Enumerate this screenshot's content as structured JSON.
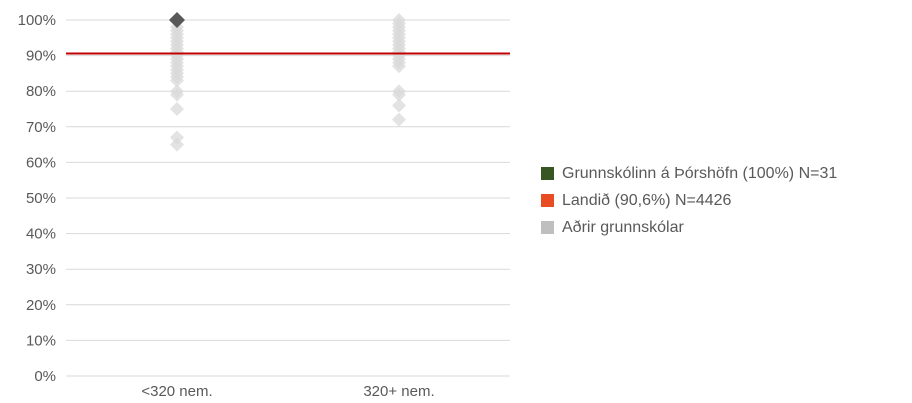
{
  "chart_data": {
    "type": "scatter",
    "categories": [
      "<320 nem.",
      "320+ nem."
    ],
    "ylim": [
      0,
      100
    ],
    "y_ticks": [
      "0%",
      "10%",
      "20%",
      "30%",
      "40%",
      "50%",
      "60%",
      "70%",
      "80%",
      "90%",
      "100%"
    ],
    "grid": true,
    "legend_position": "right",
    "series": [
      {
        "name": "Grunnskólinn á Þórshöfn (100%) N=31",
        "color": "#375623",
        "marker_color": "#595959",
        "points": [
          {
            "category": "<320 nem.",
            "y": 100
          }
        ]
      },
      {
        "name": "Landið (90,6%) N=4426",
        "color": "#c00000",
        "legend_color": "#e84c22",
        "reference_line": 90.6
      },
      {
        "name": "Aðrir grunnskólar",
        "color": "#d9d9d9",
        "legend_color": "#bfbfbf",
        "points": [
          {
            "category": "<320 nem.",
            "y": 98
          },
          {
            "category": "<320 nem.",
            "y": 97
          },
          {
            "category": "<320 nem.",
            "y": 96
          },
          {
            "category": "<320 nem.",
            "y": 95
          },
          {
            "category": "<320 nem.",
            "y": 94
          },
          {
            "category": "<320 nem.",
            "y": 93
          },
          {
            "category": "<320 nem.",
            "y": 92
          },
          {
            "category": "<320 nem.",
            "y": 91
          },
          {
            "category": "<320 nem.",
            "y": 90
          },
          {
            "category": "<320 nem.",
            "y": 89
          },
          {
            "category": "<320 nem.",
            "y": 88
          },
          {
            "category": "<320 nem.",
            "y": 87
          },
          {
            "category": "<320 nem.",
            "y": 86
          },
          {
            "category": "<320 nem.",
            "y": 85
          },
          {
            "category": "<320 nem.",
            "y": 84
          },
          {
            "category": "<320 nem.",
            "y": 83
          },
          {
            "category": "<320 nem.",
            "y": 80
          },
          {
            "category": "<320 nem.",
            "y": 79
          },
          {
            "category": "<320 nem.",
            "y": 75
          },
          {
            "category": "<320 nem.",
            "y": 67
          },
          {
            "category": "<320 nem.",
            "y": 65
          },
          {
            "category": "320+ nem.",
            "y": 100
          },
          {
            "category": "320+ nem.",
            "y": 99
          },
          {
            "category": "320+ nem.",
            "y": 98
          },
          {
            "category": "320+ nem.",
            "y": 97
          },
          {
            "category": "320+ nem.",
            "y": 96
          },
          {
            "category": "320+ nem.",
            "y": 95
          },
          {
            "category": "320+ nem.",
            "y": 94
          },
          {
            "category": "320+ nem.",
            "y": 93
          },
          {
            "category": "320+ nem.",
            "y": 92
          },
          {
            "category": "320+ nem.",
            "y": 91
          },
          {
            "category": "320+ nem.",
            "y": 90
          },
          {
            "category": "320+ nem.",
            "y": 89
          },
          {
            "category": "320+ nem.",
            "y": 88
          },
          {
            "category": "320+ nem.",
            "y": 87
          },
          {
            "category": "320+ nem.",
            "y": 80
          },
          {
            "category": "320+ nem.",
            "y": 79
          },
          {
            "category": "320+ nem.",
            "y": 76
          },
          {
            "category": "320+ nem.",
            "y": 72
          }
        ]
      }
    ]
  }
}
